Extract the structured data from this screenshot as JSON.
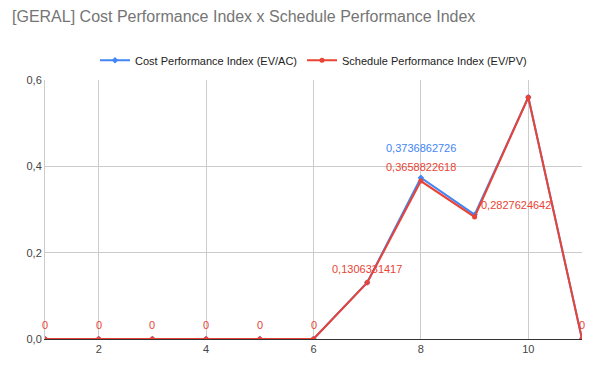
{
  "chart_data": {
    "type": "line",
    "title": "[GERAL] Cost Performance Index x Schedule Performance Index",
    "x": [
      1,
      2,
      3,
      4,
      5,
      6,
      7,
      8,
      9,
      10,
      11
    ],
    "series": [
      {
        "name": "Cost Performance Index (EV/AC)",
        "color": "#4285f4",
        "marker": "diamond",
        "values": [
          0,
          0,
          0,
          0,
          0,
          0,
          0.131,
          0.3736862726,
          0.288,
          0.56,
          0
        ],
        "value_labels": [
          null,
          null,
          null,
          null,
          null,
          null,
          null,
          "0,3736862726",
          null,
          null,
          null
        ]
      },
      {
        "name": "Schedule Performance Index (EV/PV)",
        "color": "#ea4335",
        "marker": "circle",
        "values": [
          0,
          0,
          0,
          0,
          0,
          0,
          0.1306331417,
          0.3658822618,
          0.2827624642,
          0.56,
          0
        ],
        "value_labels": [
          "0",
          "0",
          "0",
          "0",
          "0",
          "0",
          "0,1306331417",
          "0,3658822618",
          "0,2827624642",
          null,
          "0"
        ]
      }
    ],
    "xlim": [
      1,
      11
    ],
    "xticks": [
      2,
      4,
      6,
      8,
      10
    ],
    "ylim": [
      0,
      0.6
    ],
    "yticks": [
      {
        "value": 0,
        "label": "0,0"
      },
      {
        "value": 0.2,
        "label": "0,2"
      },
      {
        "value": 0.4,
        "label": "0,4"
      },
      {
        "value": 0.6,
        "label": "0,6"
      }
    ],
    "grid": true,
    "legend": "top",
    "data_labels": true
  }
}
